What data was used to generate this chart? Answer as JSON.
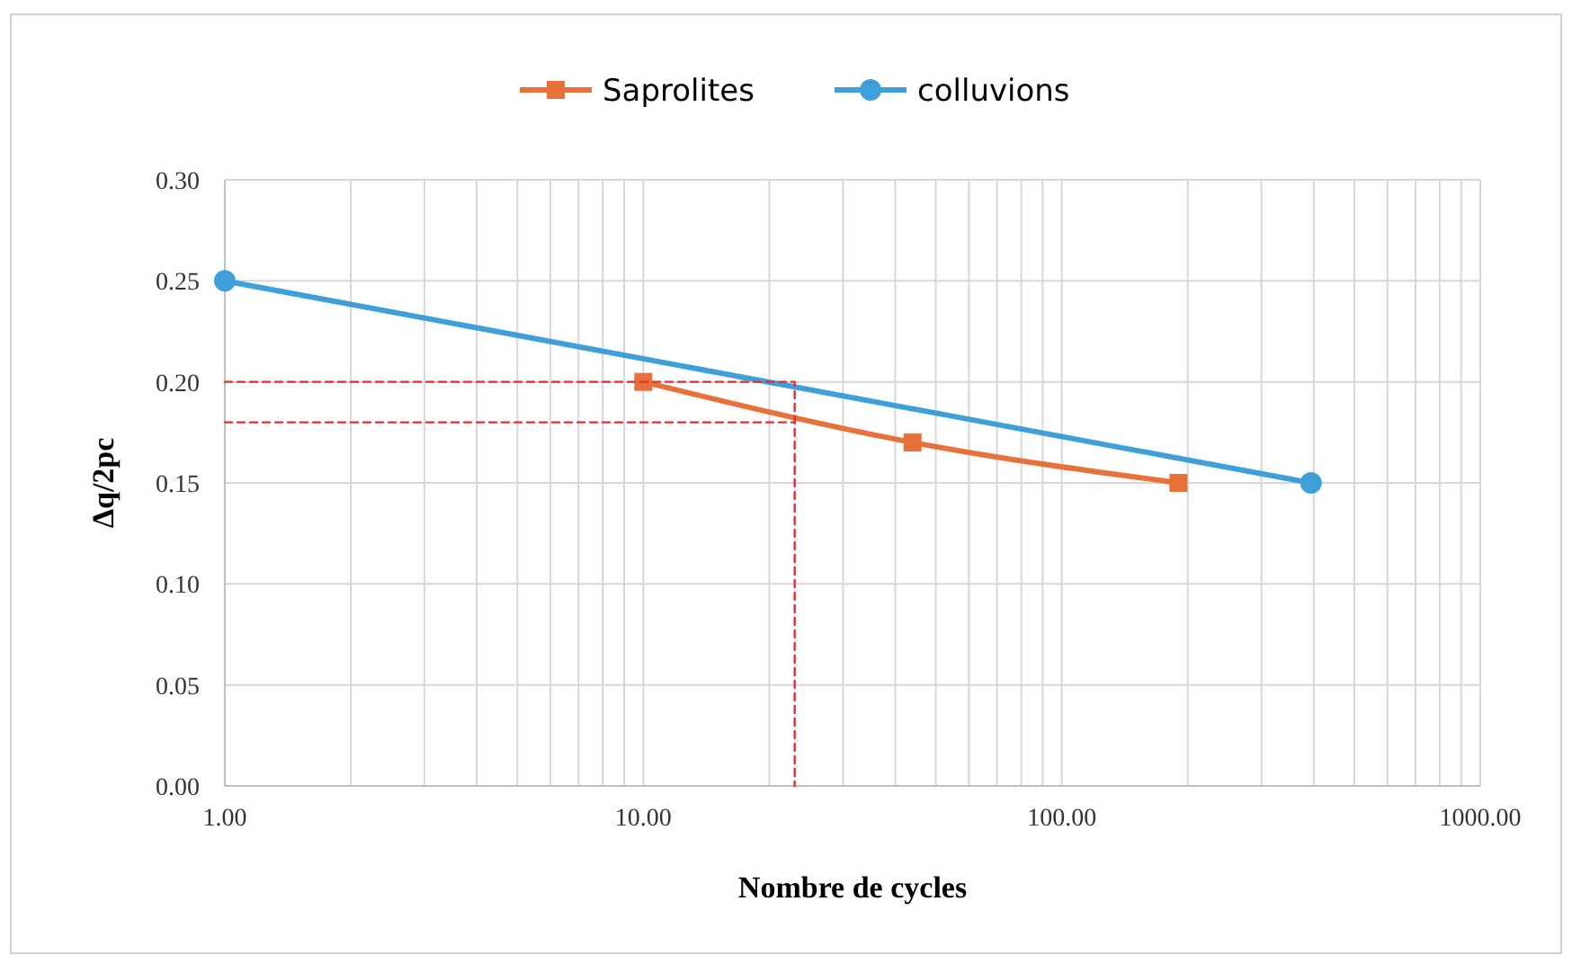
{
  "chart_data": {
    "type": "line",
    "xlabel": "Nombre de cycles",
    "ylabel": "Δq/2pc",
    "log": "x",
    "grid": true,
    "legend": "top",
    "xlim": [
      1,
      1000
    ],
    "ylim": [
      0,
      0.3
    ],
    "xticks": [
      {
        "value": 1,
        "label": "1.00"
      },
      {
        "value": 2,
        "label": null
      },
      {
        "value": 3,
        "label": null
      },
      {
        "value": 4,
        "label": null
      },
      {
        "value": 5,
        "label": null
      },
      {
        "value": 6,
        "label": null
      },
      {
        "value": 7,
        "label": null
      },
      {
        "value": 8,
        "label": null
      },
      {
        "value": 9,
        "label": null
      },
      {
        "value": 10,
        "label": "10.00"
      },
      {
        "value": 20,
        "label": null
      },
      {
        "value": 30,
        "label": null
      },
      {
        "value": 40,
        "label": null
      },
      {
        "value": 50,
        "label": null
      },
      {
        "value": 60,
        "label": null
      },
      {
        "value": 70,
        "label": null
      },
      {
        "value": 80,
        "label": null
      },
      {
        "value": 90,
        "label": null
      },
      {
        "value": 100,
        "label": "100.00"
      },
      {
        "value": 200,
        "label": null
      },
      {
        "value": 300,
        "label": null
      },
      {
        "value": 400,
        "label": null
      },
      {
        "value": 500,
        "label": null
      },
      {
        "value": 600,
        "label": null
      },
      {
        "value": 700,
        "label": null
      },
      {
        "value": 800,
        "label": null
      },
      {
        "value": 900,
        "label": null
      },
      {
        "value": 1000,
        "label": "1000.00"
      }
    ],
    "yticks": [
      {
        "value": 0,
        "label": "0.00"
      },
      {
        "value": 0.05,
        "label": "0.05"
      },
      {
        "value": 0.1,
        "label": "0.10"
      },
      {
        "value": 0.15,
        "label": "0.15"
      },
      {
        "value": 0.2,
        "label": "0.20"
      },
      {
        "value": 0.25,
        "label": "0.25"
      },
      {
        "value": 0.3,
        "label": "0.30"
      }
    ],
    "series": [
      {
        "name": "Saprolites",
        "color": "#e8703a",
        "marker": "square",
        "line_style": "solid",
        "x": [
          10,
          44,
          190
        ],
        "values": [
          0.2,
          0.17,
          0.15
        ]
      },
      {
        "name": "colluvions",
        "color": "#3f9fd8",
        "marker": "circle",
        "line_style": "solid",
        "x": [
          1,
          394
        ],
        "values": [
          0.25,
          0.15
        ]
      },
      {
        "color": "#e03030",
        "marker": "none",
        "line_style": "dashed",
        "x": [
          1,
          23,
          23
        ],
        "values": [
          0.2,
          0.2,
          0
        ]
      },
      {
        "color": "#e03030",
        "marker": "none",
        "line_style": "dashed",
        "x": [
          1,
          23
        ],
        "values": [
          0.18,
          0.18
        ]
      }
    ]
  }
}
